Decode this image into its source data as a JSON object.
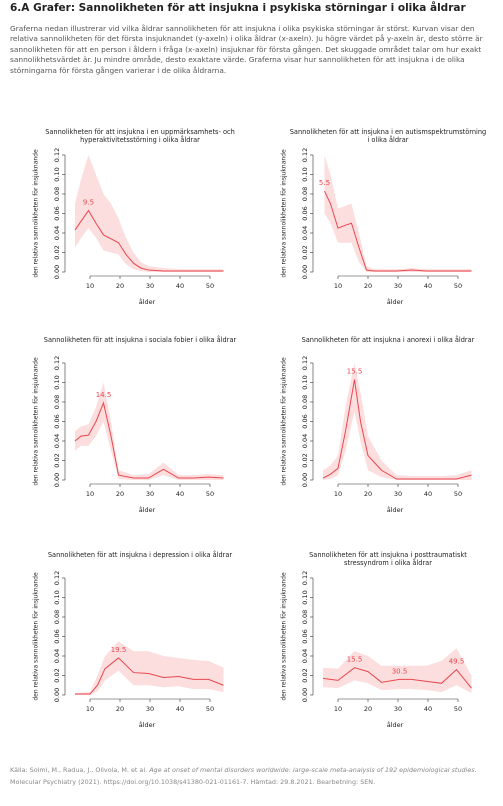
{
  "header": {
    "title": "6.A  Grafer: Sannolikheten för att insjukna i psykiska störningar i olika åldrar"
  },
  "intro": "Graferna nedan illustrerar vid vilka åldrar sannolikheten för att insjukna i olika psykiska störningar är störst. Kurvan visar den relativa sannolikheten för det första insjuknandet (y-axeln) i olika åldrar (x-axeln). Ju högre värdet på y-axeln är, desto större är sannolikheten för att en person i åldern i fråga (x-axeln) insjuknar för första gången. Det skuggade området talar om hur exakt sannolikhetsvärdet är. Ju mindre område, desto exaktare värde. Graferna visar hur sannolikheten för att insjukna i de olika störningarna för första gången varierar i de olika åldrarna.",
  "chart_data": [
    {
      "type": "line",
      "title": "Sannolikheten för att insjukna i en uppmärksamhets- och hyperaktivitetsstörning i olika åldrar",
      "xlabel": "ålder",
      "ylabel": "den relativa sannolikheten för insjuknande",
      "color": "#e8474f",
      "band_color": "#fcdede",
      "x": [
        5,
        7,
        9.5,
        12,
        14.5,
        17,
        19.5,
        22,
        24.5,
        27,
        29.5,
        34.5,
        39.5,
        44.5,
        49.5,
        54.5
      ],
      "values": [
        0.043,
        0.052,
        0.063,
        0.05,
        0.038,
        0.034,
        0.03,
        0.018,
        0.009,
        0.004,
        0.002,
        0.001,
        0.001,
        0.001,
        0.001,
        0.001
      ],
      "band": {
        "lower": [
          0.025,
          0.035,
          0.045,
          0.035,
          0.022,
          0.02,
          0.018,
          0.008,
          0.003,
          0.001,
          0,
          0,
          0,
          0,
          0,
          0
        ],
        "upper": [
          0.07,
          0.095,
          0.12,
          0.1,
          0.08,
          0.07,
          0.055,
          0.035,
          0.02,
          0.01,
          0.006,
          0.004,
          0.003,
          0.003,
          0.003,
          0.003
        ]
      },
      "annotations": [
        9.5
      ],
      "xlim": [
        3,
        55
      ],
      "xticks": [
        10,
        20,
        30,
        40,
        50
      ],
      "ylim": [
        0,
        0.12
      ],
      "yticks": [
        {
          "value": 0,
          "label": "0.00"
        },
        0.02,
        0.04,
        0.06,
        0.08,
        {
          "value": 0.1,
          "label": "0.10"
        },
        0.12
      ]
    },
    {
      "type": "line",
      "title": "Sannolikheten för att insjukna i en autismspektrumstörning i olika åldrar",
      "xlabel": "ålder",
      "ylabel": "den relativa sannolikheten för insjuknande",
      "color": "#e8474f",
      "band_color": "#fcdede",
      "x": [
        5.5,
        7.5,
        10,
        12.5,
        14.5,
        17,
        19.5,
        22,
        24.5,
        29.5,
        34.5,
        39.5,
        44.5,
        49.5,
        54.5
      ],
      "values": [
        0.083,
        0.07,
        0.045,
        0.048,
        0.05,
        0.025,
        0.002,
        0.001,
        0.001,
        0.001,
        0.002,
        0.001,
        0.001,
        0.001,
        0.001
      ],
      "band": {
        "lower": [
          0.06,
          0.05,
          0.03,
          0.03,
          0.03,
          0.01,
          0,
          0,
          0,
          0,
          0,
          0,
          0,
          0,
          0
        ],
        "upper": [
          0.12,
          0.1,
          0.065,
          0.068,
          0.07,
          0.04,
          0.006,
          0.003,
          0.003,
          0.003,
          0.004,
          0.003,
          0.003,
          0.003,
          0.003
        ]
      },
      "annotations": [
        5.5
      ],
      "xlim": [
        3,
        55
      ],
      "xticks": [
        10,
        20,
        30,
        40,
        50
      ],
      "ylim": [
        0,
        0.12
      ],
      "yticks": [
        {
          "value": 0,
          "label": "0.00"
        },
        0.02,
        0.04,
        0.06,
        0.08,
        {
          "value": 0.1,
          "label": "0.10"
        },
        0.12
      ]
    },
    {
      "type": "line",
      "title": "Sannolikheten för att insjukna i sociala fobier i olika åldrar",
      "xlabel": "ålder",
      "ylabel": "den relativa sannolikheten för insjuknande",
      "color": "#e8474f",
      "band_color": "#fcdede",
      "x": [
        5,
        7,
        9.5,
        12,
        14.5,
        17,
        19.5,
        24.5,
        29.5,
        34.5,
        39.5,
        44.5,
        49.5,
        54.5
      ],
      "values": [
        0.04,
        0.045,
        0.046,
        0.06,
        0.079,
        0.045,
        0.005,
        0.002,
        0.002,
        0.011,
        0.002,
        0.002,
        0.003,
        0.002
      ],
      "band": {
        "lower": [
          0.03,
          0.035,
          0.035,
          0.045,
          0.06,
          0.03,
          0.001,
          0,
          0,
          0.005,
          0,
          0,
          0,
          0
        ],
        "upper": [
          0.05,
          0.055,
          0.057,
          0.075,
          0.1,
          0.06,
          0.01,
          0.005,
          0.006,
          0.018,
          0.005,
          0.005,
          0.006,
          0.005
        ]
      },
      "annotations": [
        14.5
      ],
      "xlim": [
        3,
        55
      ],
      "xticks": [
        10,
        20,
        30,
        40,
        50
      ],
      "ylim": [
        0,
        0.12
      ],
      "yticks": [
        {
          "value": 0,
          "label": "0.00"
        },
        0.02,
        0.04,
        0.06,
        0.08,
        {
          "value": 0.1,
          "label": "0.10"
        },
        0.12
      ]
    },
    {
      "type": "line",
      "title": "Sannolikheten för att insjukna i anorexi i olika åldrar",
      "xlabel": "ålder",
      "ylabel": "den relativa sannolikheten för insjuknande",
      "color": "#e8474f",
      "band_color": "#fcdede",
      "x": [
        5,
        7.5,
        10,
        12.5,
        15.5,
        17.5,
        20,
        24.5,
        29.5,
        34.5,
        39.5,
        44.5,
        49.5,
        54.5
      ],
      "values": [
        0.002,
        0.006,
        0.012,
        0.05,
        0.103,
        0.06,
        0.025,
        0.01,
        0.001,
        0.001,
        0.001,
        0.001,
        0.001,
        0.005
      ],
      "band": {
        "lower": [
          0,
          0.001,
          0.005,
          0.03,
          0.07,
          0.04,
          0.01,
          0.003,
          0,
          0,
          0,
          0,
          0,
          0
        ],
        "upper": [
          0.01,
          0.015,
          0.025,
          0.075,
          0.12,
          0.09,
          0.045,
          0.02,
          0.005,
          0.004,
          0.004,
          0.004,
          0.005,
          0.01
        ]
      },
      "annotations": [
        15.5
      ],
      "xlim": [
        3,
        55
      ],
      "xticks": [
        10,
        20,
        30,
        40,
        50
      ],
      "ylim": [
        0,
        0.12
      ],
      "yticks": [
        {
          "value": 0,
          "label": "0.00"
        },
        0.02,
        0.04,
        0.06,
        0.08,
        {
          "value": 0.1,
          "label": "0.10"
        },
        0.12
      ]
    },
    {
      "type": "line",
      "title": "Sannolikheten för att insjukna i depression i olika åldrar",
      "xlabel": "ålder",
      "ylabel": "den relativa sannolikheten för insjuknande",
      "color": "#e8474f",
      "band_color": "#fcdede",
      "x": [
        5,
        10,
        12.5,
        15,
        19.5,
        24.5,
        29.5,
        34.5,
        39.5,
        44.5,
        49.5,
        54.5
      ],
      "values": [
        0.001,
        0.001,
        0.01,
        0.027,
        0.038,
        0.023,
        0.022,
        0.018,
        0.019,
        0.016,
        0.016,
        0.01
      ],
      "band": {
        "lower": [
          0,
          0,
          0.004,
          0.015,
          0.025,
          0.01,
          0.01,
          0.008,
          0.009,
          0.006,
          0.006,
          0.003
        ],
        "upper": [
          0.002,
          0.003,
          0.02,
          0.04,
          0.055,
          0.045,
          0.045,
          0.04,
          0.038,
          0.036,
          0.035,
          0.028
        ]
      },
      "annotations": [
        19.5
      ],
      "xlim": [
        3,
        55
      ],
      "xticks": [
        10,
        20,
        30,
        40,
        50
      ],
      "ylim": [
        0,
        0.12
      ],
      "yticks": [
        {
          "value": 0,
          "label": "0.00"
        },
        0.02,
        0.04,
        0.06,
        0.08,
        {
          "value": 0.1,
          "label": "0.10"
        },
        0.12
      ]
    },
    {
      "type": "line",
      "title": "Sannolikheten för att insjukna i posttraumatiskt stressyndrom i olika åldrar",
      "xlabel": "ålder",
      "ylabel": "den relativa sannolikheten för insjuknande",
      "color": "#e8474f",
      "band_color": "#fcdede",
      "x": [
        5,
        10,
        15.5,
        20,
        24.5,
        30.5,
        34.5,
        39.5,
        44.5,
        49.5,
        54.5
      ],
      "values": [
        0.017,
        0.015,
        0.028,
        0.024,
        0.013,
        0.016,
        0.016,
        0.014,
        0.012,
        0.026,
        0.007
      ],
      "band": {
        "lower": [
          0.008,
          0.007,
          0.015,
          0.012,
          0.005,
          0.006,
          0.006,
          0.005,
          0.003,
          0.01,
          0.002
        ],
        "upper": [
          0.028,
          0.027,
          0.045,
          0.04,
          0.03,
          0.03,
          0.03,
          0.03,
          0.035,
          0.048,
          0.02
        ]
      },
      "annotations": [
        15.5,
        30.5,
        49.5
      ],
      "xlim": [
        3,
        55
      ],
      "xticks": [
        10,
        20,
        30,
        40,
        50
      ],
      "ylim": [
        0,
        0.12
      ],
      "yticks": [
        {
          "value": 0,
          "label": "0.00"
        },
        0.02,
        0.04,
        0.06,
        0.08,
        {
          "value": 0.1,
          "label": "0.10"
        },
        0.12
      ]
    }
  ],
  "source": {
    "prefix": "Källa: Solmi, M., Radua, J., Olivola, M. et al.",
    "italic": "Age at onset of mental disorders worldwide: large-scale meta-analysis of 192 epidemiological studies.",
    "suffix": "Molecular Psychiatry (2021). https://doi.org/10.1038/s41380-021-01161-7. Hämtad: 29.8.2021. Bearbetning: SEN."
  }
}
